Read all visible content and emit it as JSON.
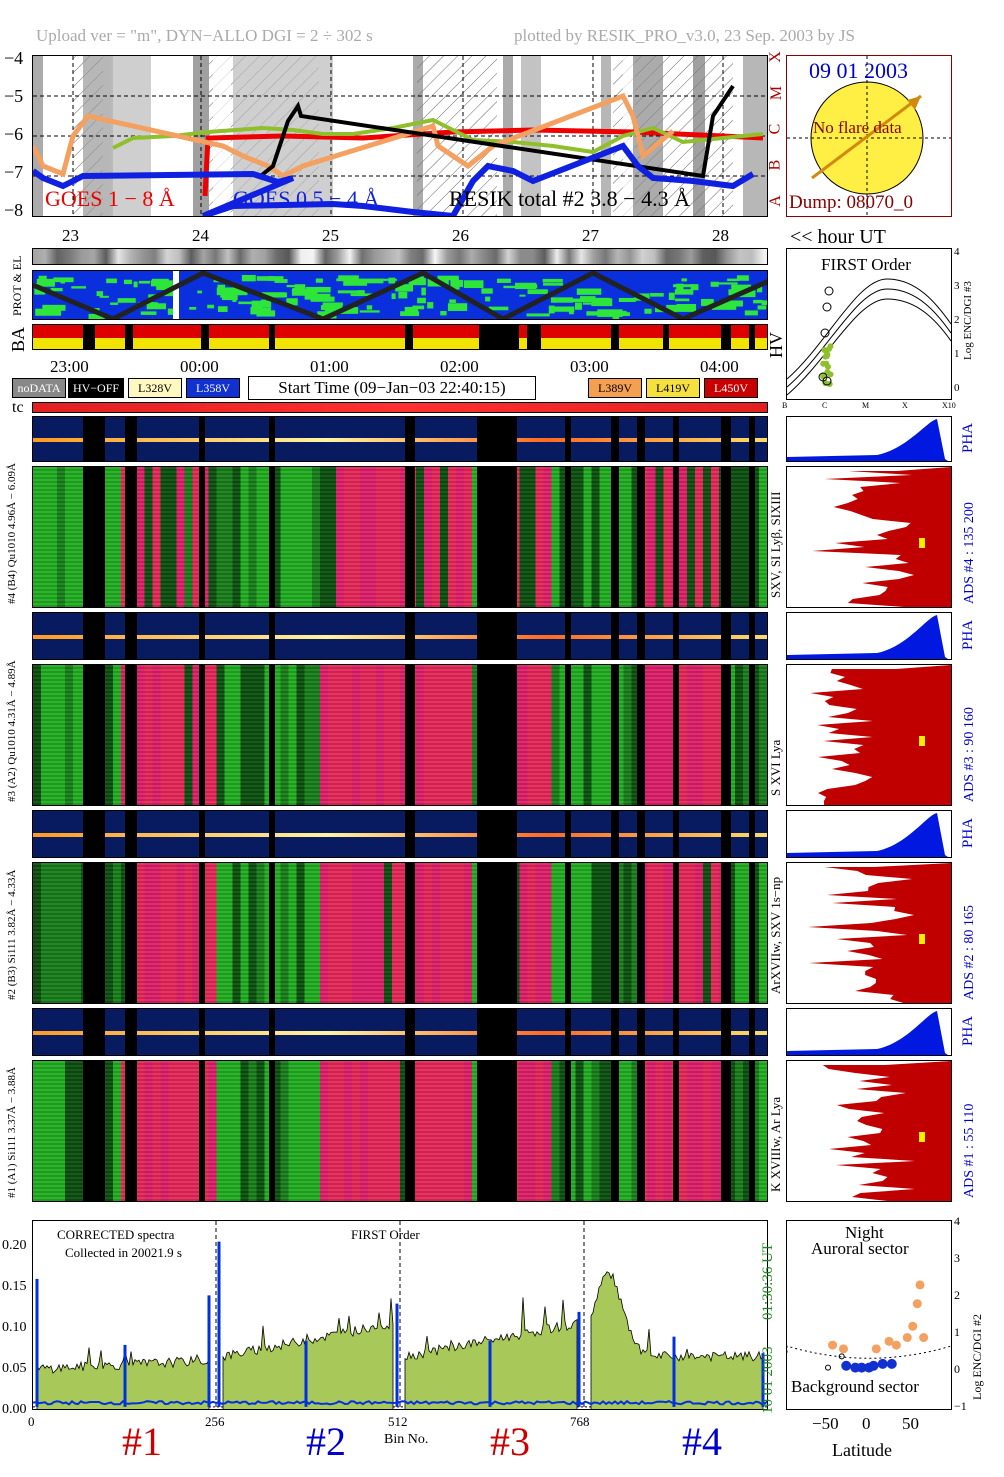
{
  "header": {
    "upload": "Upload ver = \"m\", DYN−ALLO DGI =   2 ÷ 302 s",
    "plotted": "plotted by RESIK_PRO_v3.0, 23 Sep. 2003 by JS"
  },
  "goes": {
    "ytick_labels": [
      "−4",
      "−5",
      "−6",
      "−7",
      "−8"
    ],
    "ylim": [
      -8,
      -4
    ],
    "class_labels": [
      "X",
      "M",
      "C",
      "B",
      "A"
    ],
    "legend": [
      "GOES 1 − 8 Å",
      "GOES 0.5 − 4 Å",
      "RESIK total #2  3.8 − 4.3 Å"
    ]
  },
  "sun_box": {
    "date": "09 01 2003",
    "flare": "No flare data",
    "dump": "Dump: 08070_0"
  },
  "minute_axis": {
    "labels": [
      "23",
      "24",
      "25",
      "26",
      "27",
      "28"
    ],
    "unit": "<< hour UT"
  },
  "side_labels": {
    "prot": "PROT & EL",
    "ba": "BA",
    "hv": "HV",
    "tc": "tc"
  },
  "time_axis": {
    "labels": [
      "23:00",
      "00:00",
      "01:00",
      "02:00",
      "03:00",
      "04:00"
    ]
  },
  "legend_row": {
    "nodata": "noDATA",
    "hvoff": "HV−OFF",
    "voltages": [
      "L328V",
      "L358V",
      "L389V",
      "L419V",
      "L450V"
    ],
    "start_time": "Start Time (09−Jan−03 22:40:15)"
  },
  "first_order": {
    "title": "FIRST Order",
    "ylabel": "Log ENC/DGI #3",
    "ytick_labels": [
      "4",
      "3",
      "2",
      "1",
      "0"
    ],
    "xtick_labels": [
      "B",
      "C",
      "M",
      "X",
      "X10"
    ]
  },
  "channels": [
    {
      "id": 4,
      "pha_label": "#4 (B4) Qu1010  4.96Å − 6.09Å",
      "lines": "SXV, SI Lyβ, SIXIII",
      "ads": "ADS #4 :   135 200"
    },
    {
      "id": 3,
      "pha_label": "#3 (A2) Qu1010  4.31Å − 4.89Å",
      "lines": "S XVI Lya",
      "ads": "ADS #3 :    90 160"
    },
    {
      "id": 2,
      "pha_label": "#2 (B3) Si111  3.82Å − 4.33Å",
      "lines": "ArXVIIw, SXV 1s−np",
      "ads": "ADS #2 :    80 165"
    },
    {
      "id": 1,
      "pha_label": "#1 (A1) Si111  3.37Å − 3.88Å",
      "lines": "K XVIIIw, Ar Lya",
      "ads": "ADS #1 :    55 110"
    }
  ],
  "pha_text": "PHA",
  "spectrum": {
    "note1": "CORRECTED spectra",
    "note2": "Collected in 20021.9 s",
    "order_label": "FIRST Order",
    "xtick_labels": [
      "0",
      "256",
      "512",
      "768"
    ],
    "xlabel": "Bin No.",
    "ytick_labels": [
      "0.20",
      "0.15",
      "0.10",
      "0.05",
      "0.00"
    ],
    "side_time": "01:30:36 UT",
    "side_date": "10 01 2003",
    "channel_labels": [
      "#1",
      "#2",
      "#3",
      "#4"
    ],
    "colors": {
      "red": "#cc0000",
      "blue": "#0000cc",
      "fill": "#a8c85a"
    }
  },
  "latitude": {
    "title1": "Night",
    "title2": "Auroral sector",
    "bottom": "Background sector",
    "xlabel": "Latitude",
    "ylabel": "Log ENC/DGI #2",
    "xtick_labels": [
      "−50",
      "0",
      "50"
    ],
    "ytick_labels": [
      "4",
      "3",
      "2",
      "1",
      "0",
      "−1"
    ]
  },
  "chart_data": [
    {
      "type": "line",
      "xlim": [
        0,
        1023
      ],
      "ylim": [
        0,
        0.23
      ],
      "ylabel": "",
      "xlabel": "Bin No."
    },
    {
      "type": "scatter",
      "xlim": [
        -90,
        90
      ],
      "ylim": [
        -1,
        4
      ],
      "xlabel": "Latitude",
      "ylabel": "Log ENC/DGI #2",
      "points_orange": [
        [
          -40,
          0.7
        ],
        [
          -28,
          0.6
        ],
        [
          8,
          0.6
        ],
        [
          22,
          0.8
        ],
        [
          30,
          0.7
        ],
        [
          42,
          0.9
        ],
        [
          48,
          1.2
        ],
        [
          53,
          1.8
        ],
        [
          56,
          2.3
        ],
        [
          60,
          0.9
        ]
      ],
      "points_blue": [
        [
          -25,
          0.15
        ],
        [
          -15,
          0.1
        ],
        [
          -8,
          0.1
        ],
        [
          0,
          0.1
        ],
        [
          5,
          0.15
        ],
        [
          15,
          0.2
        ],
        [
          25,
          0.2
        ]
      ],
      "points_open": [
        [
          -45,
          0.1
        ],
        [
          -30,
          0.4
        ]
      ]
    }
  ]
}
